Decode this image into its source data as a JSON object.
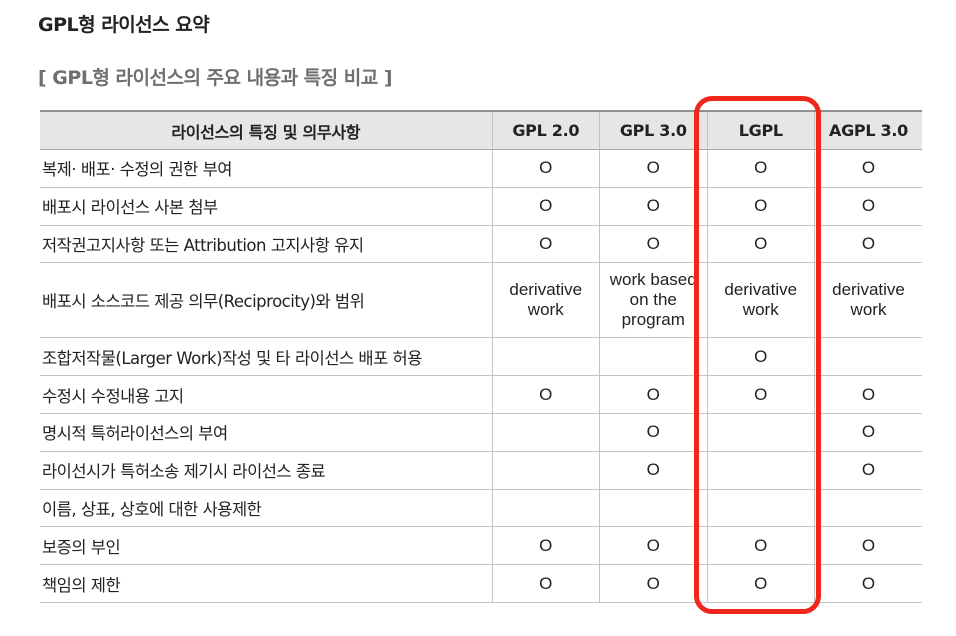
{
  "title": "GPL형 라이선스 요약",
  "subtitle": "[ GPL형 라이선스의 주요 내용과 특징 비교 ]",
  "table": {
    "headers": [
      "라이선스의 특징 및 의무사항",
      "GPL 2.0",
      "GPL 3.0",
      "LGPL",
      "AGPL 3.0"
    ],
    "rows": [
      {
        "feature": "복제· 배포· 수정의 권한 부여",
        "cells": [
          "O",
          "O",
          "O",
          "O"
        ]
      },
      {
        "feature": "배포시 라이선스 사본 첨부",
        "cells": [
          "O",
          "O",
          "O",
          "O"
        ]
      },
      {
        "feature": "저작권고지사항 또는 Attribution 고지사항 유지",
        "cells": [
          "O",
          "O",
          "O",
          "O"
        ]
      },
      {
        "feature": "배포시 소스코드 제공 의무(Reciprocity)와 범위",
        "cells": [
          "derivative\nwork",
          "work based\non the\nprogram",
          "derivative\nwork",
          "derivative\nwork"
        ]
      },
      {
        "feature": "조합저작물(Larger Work)작성 및 타 라이선스 배포 허용",
        "cells": [
          "",
          "",
          "O",
          ""
        ]
      },
      {
        "feature": "수정시 수정내용 고지",
        "cells": [
          "O",
          "O",
          "O",
          "O"
        ]
      },
      {
        "feature": "명시적 특허라이선스의 부여",
        "cells": [
          "",
          "O",
          "",
          "O"
        ]
      },
      {
        "feature": "라이선시가 특허소송 제기시 라이선스 종료",
        "cells": [
          "",
          "O",
          "",
          "O"
        ]
      },
      {
        "feature": "이름, 상표, 상호에 대한 사용제한",
        "cells": [
          "",
          "",
          "",
          ""
        ]
      },
      {
        "feature": "보증의 부인",
        "cells": [
          "O",
          "O",
          "O",
          "O"
        ]
      },
      {
        "feature": "책임의 제한",
        "cells": [
          "O",
          "O",
          "O",
          "O"
        ]
      }
    ]
  },
  "highlight": {
    "column": "LGPL",
    "color": "#f0261b"
  }
}
